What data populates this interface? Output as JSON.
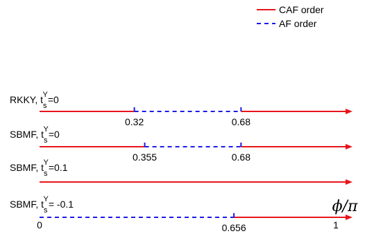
{
  "legend": {
    "caf": {
      "label": "CAF order",
      "color": "#e8141b",
      "style": "solid"
    },
    "af": {
      "label": "AF order",
      "color": "#1a1ae6",
      "style": "dashed"
    }
  },
  "axis_symbol": "ϕ/π",
  "axis_ends": {
    "start": "0",
    "end": "1"
  },
  "rows": [
    {
      "label_prefix": "RKKY, t",
      "label_sub": "s",
      "label_sup": "Y",
      "label_suffix": "=0",
      "segments": [
        {
          "order": "caf",
          "from": 0,
          "to": 0.32
        },
        {
          "order": "af",
          "from": 0.32,
          "to": 0.68
        },
        {
          "order": "caf",
          "from": 0.68,
          "to": 1
        }
      ],
      "ticks": [
        {
          "value": 0.32,
          "label": "0.32"
        },
        {
          "value": 0.68,
          "label": "0.68"
        }
      ]
    },
    {
      "label_prefix": "SBMF, t",
      "label_sub": "s",
      "label_sup": "Y",
      "label_suffix": "=0",
      "segments": [
        {
          "order": "caf",
          "from": 0,
          "to": 0.355
        },
        {
          "order": "af",
          "from": 0.355,
          "to": 0.68
        },
        {
          "order": "caf",
          "from": 0.68,
          "to": 1
        }
      ],
      "ticks": [
        {
          "value": 0.355,
          "label": "0.355"
        },
        {
          "value": 0.68,
          "label": "0.68"
        }
      ]
    },
    {
      "label_prefix": "SBMF, t",
      "label_sub": "s",
      "label_sup": "Y",
      "label_suffix": "=0.1",
      "segments": [
        {
          "order": "caf",
          "from": 0,
          "to": 1
        }
      ],
      "ticks": []
    },
    {
      "label_prefix": "SBMF, t",
      "label_sub": "s",
      "label_sup": "Y",
      "label_suffix": "= -0.1",
      "segments": [
        {
          "order": "af",
          "from": 0,
          "to": 0.656
        },
        {
          "order": "caf",
          "from": 0.656,
          "to": 1
        }
      ],
      "ticks": [
        {
          "value": 0.656,
          "label": "0.656"
        }
      ]
    }
  ]
}
